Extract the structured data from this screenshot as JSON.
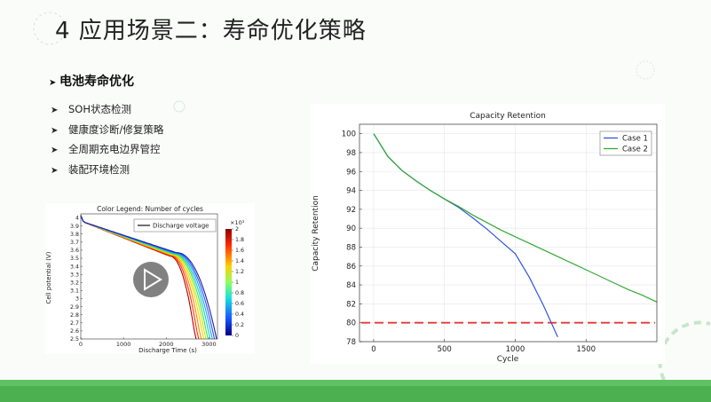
{
  "slide": {
    "title": "4 应用场景二：寿命优化策略",
    "section_heading": "电池寿命优化",
    "bullets": [
      "SOH状态检测",
      "健康度诊断/修复策略",
      "全周期充电边界管控",
      "装配环境检测"
    ],
    "accent_color": "#4caf50"
  },
  "chart_data": [
    {
      "type": "line",
      "title": "Color Legend: Number of cycles",
      "xlabel": "Discharge Time (s)",
      "ylabel": "Cell potential (V)",
      "xlim": [
        0,
        3200
      ],
      "ylim": [
        2.5,
        4.05
      ],
      "x_ticks": [
        "0",
        "1000",
        "2000",
        "3000"
      ],
      "y_ticks": [
        "4",
        "3.9",
        "3.8",
        "3.7",
        "3.6",
        "3.5",
        "3.4",
        "3.3",
        "3.2",
        "3.1",
        "3",
        "2.9",
        "2.8",
        "2.7",
        "2.6",
        "2.5"
      ],
      "legend": [
        "Discharge voltage"
      ],
      "colorbar": {
        "label": "×10³",
        "ticks": [
          "2",
          "1.8",
          "1.6",
          "1.4",
          "1.2",
          "1",
          "0.8",
          "0.6",
          "0.4",
          "0.2",
          "0"
        ],
        "range": [
          0,
          2
        ]
      },
      "series_end_times": [
        2700,
        2760,
        2820,
        2880,
        2930,
        2980,
        3030,
        3080,
        3130,
        3180
      ],
      "overlay_icon": "play-icon"
    },
    {
      "type": "line",
      "title": "Capacity Retention",
      "xlabel": "Cycle",
      "ylabel": "Capacity Retention",
      "xlim": [
        -100,
        2000
      ],
      "ylim": [
        78,
        101
      ],
      "x_ticks": [
        0,
        500,
        1000,
        1500
      ],
      "y_ticks": [
        78,
        80,
        82,
        84,
        86,
        88,
        90,
        92,
        94,
        96,
        98,
        100
      ],
      "grid": true,
      "legend_position": "top-right",
      "threshold": {
        "y": 80,
        "color": "#e53935"
      },
      "series": [
        {
          "name": "Case 1",
          "color": "#3355dd",
          "x": [
            0,
            100,
            200,
            300,
            400,
            500,
            600,
            700,
            800,
            900,
            1000,
            1100,
            1200,
            1300
          ],
          "y": [
            100,
            97.6,
            96.1,
            95.0,
            94.0,
            93.1,
            92.2,
            91.1,
            89.9,
            88.6,
            87.3,
            84.8,
            81.8,
            78.5
          ]
        },
        {
          "name": "Case 2",
          "color": "#33aa33",
          "x": [
            0,
            100,
            200,
            300,
            400,
            500,
            600,
            700,
            800,
            900,
            1000,
            1100,
            1200,
            1300,
            1400,
            1500,
            1600,
            1700,
            1800,
            1900,
            2000
          ],
          "y": [
            100,
            97.6,
            96.1,
            95.0,
            94.0,
            93.1,
            92.3,
            91.4,
            90.6,
            89.8,
            89.1,
            88.4,
            87.7,
            87.0,
            86.3,
            85.6,
            84.9,
            84.2,
            83.5,
            82.9,
            82.2
          ]
        }
      ]
    }
  ]
}
